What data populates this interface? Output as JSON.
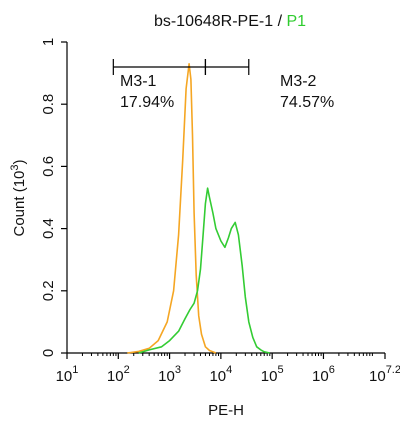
{
  "chart_data": {
    "type": "line",
    "title": {
      "sample": "bs-10648R-PE-1",
      "separator": " / ",
      "gate": "P1",
      "gate_color": "#2ecc2e"
    },
    "xlabel": "PE-H",
    "ylabel_main": "Count (10",
    "ylabel_exp": "3",
    "ylabel_close": ")",
    "x_scale": "log",
    "xlim": [
      10,
      15848932
    ],
    "ylim": [
      0,
      1
    ],
    "x_ticks": [
      {
        "value": 10,
        "base": "10",
        "exp": "1"
      },
      {
        "value": 100,
        "base": "10",
        "exp": "2"
      },
      {
        "value": 1000,
        "base": "10",
        "exp": "3"
      },
      {
        "value": 10000,
        "base": "10",
        "exp": "4"
      },
      {
        "value": 100000,
        "base": "10",
        "exp": "5"
      },
      {
        "value": 1000000,
        "base": "10",
        "exp": "6"
      },
      {
        "value": 15848932,
        "base": "10",
        "exp": "7.2"
      }
    ],
    "y_ticks": [
      {
        "value": 0,
        "label": "0"
      },
      {
        "value": 0.2,
        "label": "0.2"
      },
      {
        "value": 0.4,
        "label": "0.4"
      },
      {
        "value": 0.6,
        "label": "0.6"
      },
      {
        "value": 0.8,
        "label": "0.8"
      },
      {
        "value": 1,
        "label": "1"
      }
    ],
    "markers": [
      {
        "name": "M3-1",
        "percent": "17.94%",
        "range": [
          80,
          5000
        ]
      },
      {
        "name": "M3-2",
        "percent": "74.57%",
        "range": [
          5000,
          35000
        ]
      }
    ],
    "series": [
      {
        "color": "#f5a623",
        "x": [
          150,
          250,
          400,
          600,
          900,
          1200,
          1500,
          1800,
          2100,
          2400,
          2600,
          2800,
          3000,
          3300,
          3700,
          4200,
          5000,
          6000,
          8000
        ],
        "y": [
          0,
          0.005,
          0.015,
          0.04,
          0.1,
          0.2,
          0.38,
          0.62,
          0.85,
          0.93,
          0.88,
          0.7,
          0.45,
          0.25,
          0.12,
          0.06,
          0.02,
          0.008,
          0
        ]
      },
      {
        "color": "#33cc33",
        "x": [
          250,
          400,
          700,
          1000,
          1500,
          2000,
          2500,
          3000,
          3500,
          4000,
          4500,
          5000,
          5500,
          6000,
          7000,
          8000,
          10000,
          12000,
          14000,
          16000,
          19000,
          22000,
          26000,
          30000,
          35000,
          42000,
          50000,
          60000,
          70000,
          90000
        ],
        "y": [
          0,
          0.01,
          0.02,
          0.04,
          0.07,
          0.11,
          0.14,
          0.16,
          0.2,
          0.27,
          0.38,
          0.48,
          0.53,
          0.5,
          0.45,
          0.4,
          0.36,
          0.34,
          0.37,
          0.4,
          0.42,
          0.38,
          0.28,
          0.18,
          0.1,
          0.05,
          0.02,
          0.01,
          0.004,
          0
        ]
      }
    ],
    "grid": false
  }
}
